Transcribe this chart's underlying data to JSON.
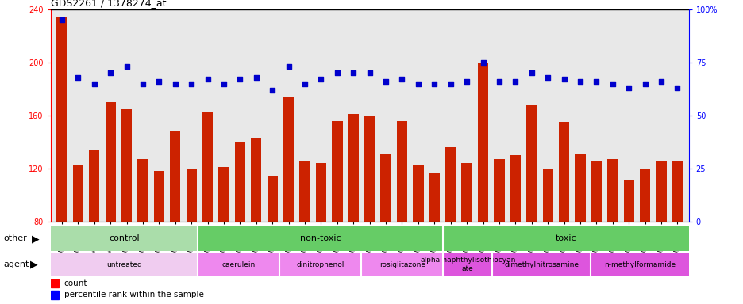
{
  "title": "GDS2261 / 1378274_at",
  "samples": [
    "GSM127079",
    "GSM127080",
    "GSM127081",
    "GSM127082",
    "GSM127083",
    "GSM127084",
    "GSM127085",
    "GSM127086",
    "GSM127087",
    "GSM127054",
    "GSM127055",
    "GSM127056",
    "GSM127057",
    "GSM127058",
    "GSM127064",
    "GSM127065",
    "GSM127066",
    "GSM127067",
    "GSM127068",
    "GSM127074",
    "GSM127075",
    "GSM127076",
    "GSM127077",
    "GSM127078",
    "GSM127049",
    "GSM127050",
    "GSM127051",
    "GSM127052",
    "GSM127053",
    "GSM127059",
    "GSM127060",
    "GSM127061",
    "GSM127062",
    "GSM127063",
    "GSM127069",
    "GSM127070",
    "GSM127071",
    "GSM127072",
    "GSM127073"
  ],
  "counts": [
    234,
    123,
    134,
    170,
    165,
    127,
    118,
    148,
    120,
    163,
    121,
    140,
    143,
    115,
    174,
    126,
    124,
    156,
    161,
    160,
    131,
    156,
    123,
    117,
    136,
    124,
    200,
    127,
    130,
    168,
    120,
    155,
    131,
    126,
    127,
    112,
    120,
    126,
    126
  ],
  "percentile": [
    95,
    68,
    65,
    70,
    73,
    65,
    66,
    65,
    65,
    67,
    65,
    67,
    68,
    62,
    73,
    65,
    67,
    70,
    70,
    70,
    66,
    67,
    65,
    65,
    65,
    66,
    75,
    66,
    66,
    70,
    68,
    67,
    66,
    66,
    65,
    63,
    65,
    66,
    63
  ],
  "ylim_left": [
    80,
    240
  ],
  "ylim_right": [
    0,
    100
  ],
  "yticks_left": [
    80,
    120,
    160,
    200,
    240
  ],
  "yticks_right": [
    0,
    25,
    50,
    75,
    100
  ],
  "bar_color": "#cc2200",
  "dot_color": "#0000cc",
  "plot_bg": "#e8e8e8",
  "other_row": [
    {
      "label": "control",
      "start": 0,
      "end": 9,
      "color": "#aaddaa"
    },
    {
      "label": "non-toxic",
      "start": 9,
      "end": 24,
      "color": "#66cc66"
    },
    {
      "label": "toxic",
      "start": 24,
      "end": 39,
      "color": "#66cc66"
    }
  ],
  "agent_row": [
    {
      "label": "untreated",
      "start": 0,
      "end": 9,
      "color": "#f0ccf0"
    },
    {
      "label": "caerulein",
      "start": 9,
      "end": 14,
      "color": "#ee88ee"
    },
    {
      "label": "dinitrophenol",
      "start": 14,
      "end": 19,
      "color": "#ee88ee"
    },
    {
      "label": "rosiglitazone",
      "start": 19,
      "end": 24,
      "color": "#ee88ee"
    },
    {
      "label": "alpha-naphthylisothiocyan\nate",
      "start": 24,
      "end": 27,
      "color": "#dd55dd"
    },
    {
      "label": "dimethylnitrosamine",
      "start": 27,
      "end": 33,
      "color": "#dd55dd"
    },
    {
      "label": "n-methylformamide",
      "start": 33,
      "end": 39,
      "color": "#dd55dd"
    }
  ]
}
